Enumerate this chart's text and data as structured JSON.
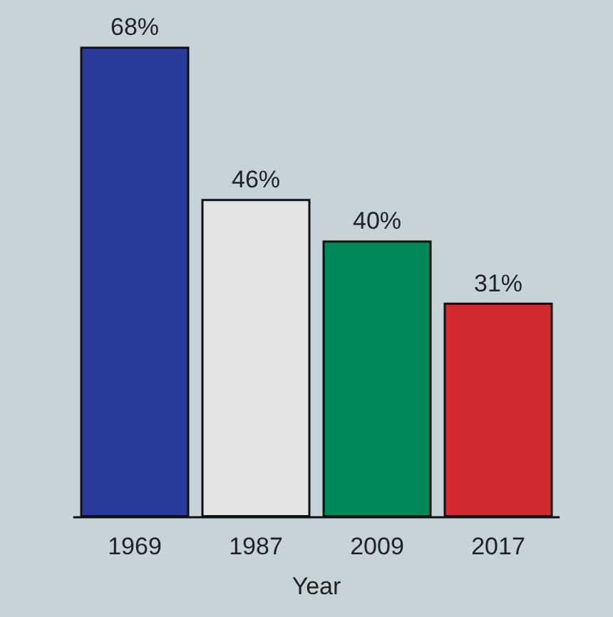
{
  "chart_data": {
    "type": "bar",
    "xlabel": "Year",
    "categories": [
      "1969",
      "1987",
      "2009",
      "2017"
    ],
    "values": [
      68,
      46,
      40,
      31
    ],
    "colors": [
      "#2a3b9a",
      "#e2e3e5",
      "#00875a",
      "#d12b2f"
    ],
    "value_labels": [
      "68%",
      "46%",
      "40%",
      "31%"
    ]
  }
}
